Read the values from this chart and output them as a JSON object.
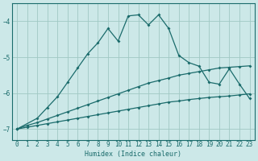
{
  "xlabel": "Humidex (Indice chaleur)",
  "bg_color": "#cce8e8",
  "grid_color": "#a0c8c4",
  "line_color": "#1a6b6b",
  "xlim": [
    -0.5,
    23.5
  ],
  "ylim": [
    -7.3,
    -3.5
  ],
  "yticks": [
    -7,
    -6,
    -5,
    -4
  ],
  "xticks": [
    0,
    1,
    2,
    3,
    4,
    5,
    6,
    7,
    8,
    9,
    10,
    11,
    12,
    13,
    14,
    15,
    16,
    17,
    18,
    19,
    20,
    21,
    22,
    23
  ],
  "series1_x": [
    0,
    1,
    2,
    3,
    4,
    5,
    6,
    7,
    8,
    9,
    10,
    11,
    12,
    13,
    14,
    15,
    16,
    17,
    18,
    19,
    20,
    21,
    22,
    23
  ],
  "series1_y": [
    -7.0,
    -6.95,
    -6.9,
    -6.85,
    -6.8,
    -6.75,
    -6.7,
    -6.65,
    -6.6,
    -6.55,
    -6.5,
    -6.45,
    -6.4,
    -6.35,
    -6.3,
    -6.25,
    -6.22,
    -6.18,
    -6.15,
    -6.12,
    -6.1,
    -6.08,
    -6.05,
    -6.02
  ],
  "series2_x": [
    0,
    1,
    2,
    3,
    4,
    5,
    6,
    7,
    8,
    9,
    10,
    11,
    12,
    13,
    14,
    15,
    16,
    17,
    18,
    19,
    20,
    21,
    22,
    23
  ],
  "series2_y": [
    -7.0,
    -6.9,
    -6.82,
    -6.72,
    -6.62,
    -6.52,
    -6.42,
    -6.32,
    -6.22,
    -6.12,
    -6.02,
    -5.92,
    -5.82,
    -5.72,
    -5.65,
    -5.58,
    -5.5,
    -5.45,
    -5.4,
    -5.35,
    -5.3,
    -5.28,
    -5.26,
    -5.24
  ],
  "series3_x": [
    0,
    2,
    3,
    4,
    5,
    6,
    7,
    8,
    9,
    10,
    11,
    12,
    13,
    14,
    15,
    16,
    17,
    18,
    19,
    20,
    21,
    22,
    23
  ],
  "series3_y": [
    -7.0,
    -6.7,
    -6.4,
    -6.1,
    -5.7,
    -5.3,
    -4.9,
    -4.6,
    -4.2,
    -4.55,
    -3.85,
    -3.82,
    -4.1,
    -3.82,
    -4.2,
    -4.95,
    -5.15,
    -5.25,
    -5.7,
    -5.75,
    -5.32,
    -5.75,
    -6.15
  ]
}
